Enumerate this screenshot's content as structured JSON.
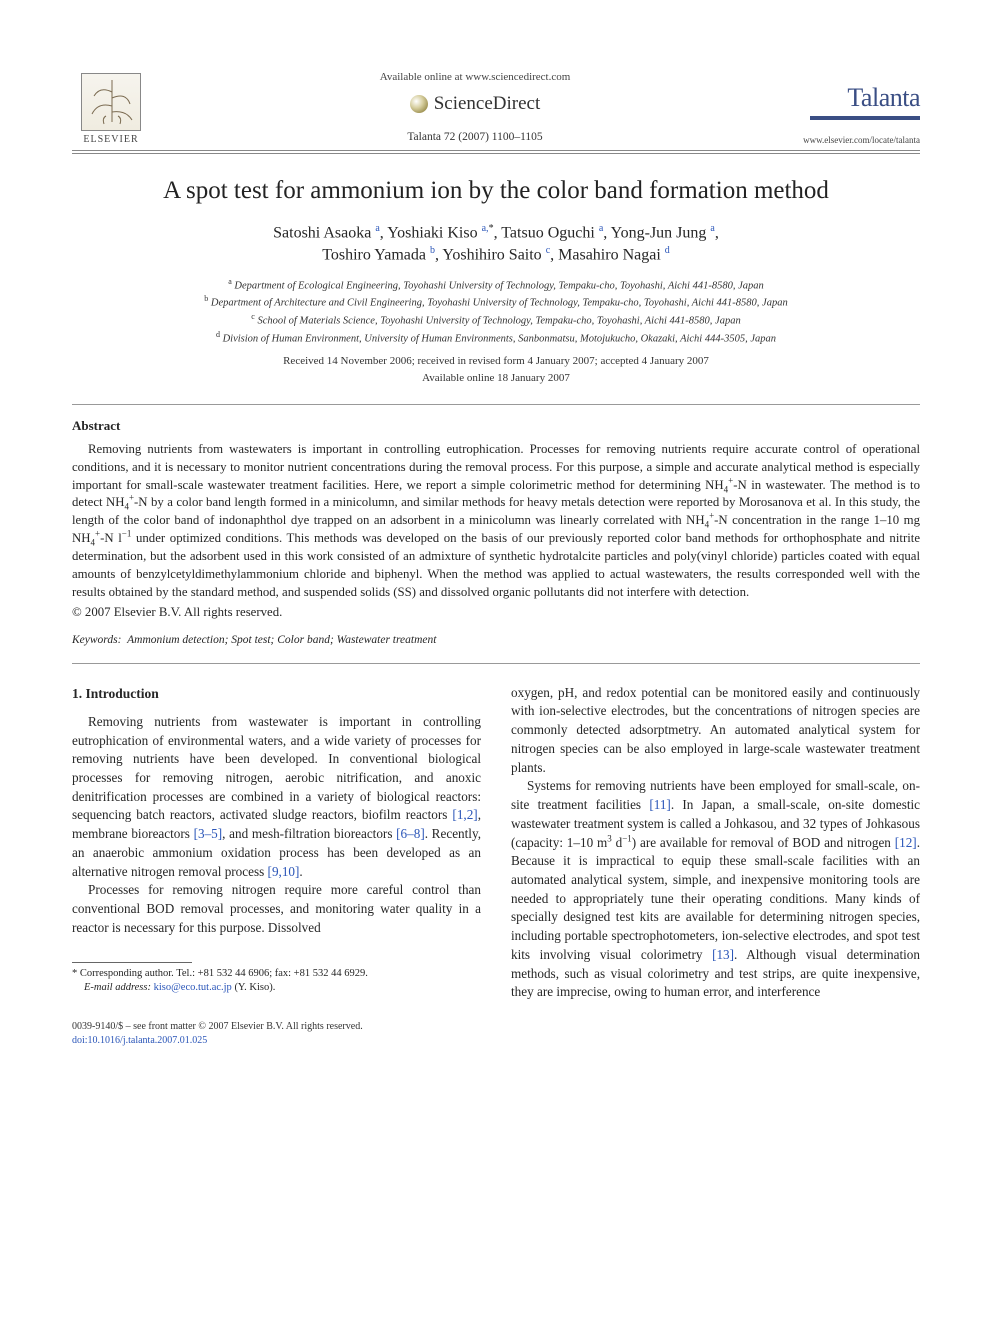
{
  "header": {
    "available_online": "Available online at www.sciencedirect.com",
    "sciencedirect": "ScienceDirect",
    "citation": "Talanta 72 (2007) 1100–1105",
    "elsevier": "ELSEVIER",
    "journal_name": "Talanta",
    "journal_url": "www.elsevier.com/locate/talanta"
  },
  "title": "A spot test for ammonium ion by the color band formation method",
  "authors_html": "Satoshi Asaoka <sup class=\"link\">a</sup>, Yoshiaki Kiso <sup class=\"link\">a,</sup><sup>*</sup>, Tatsuo Oguchi <sup class=\"link\">a</sup>, Yong-Jun Jung <sup class=\"link\">a</sup>,<br>Toshiro Yamada <sup class=\"link\">b</sup>, Yoshihiro Saito <sup class=\"link\">c</sup>, Masahiro Nagai <sup class=\"link\">d</sup>",
  "affiliations": {
    "a": "Department of Ecological Engineering, Toyohashi University of Technology, Tempaku-cho, Toyohashi, Aichi 441-8580, Japan",
    "b": "Department of Architecture and Civil Engineering, Toyohashi University of Technology, Tempaku-cho, Toyohashi, Aichi 441-8580, Japan",
    "c": "School of Materials Science, Toyohashi University of Technology, Tempaku-cho, Toyohashi, Aichi 441-8580, Japan",
    "d": "Division of Human Environment, University of Human Environments, Sanbonmatsu, Motojukucho, Okazaki, Aichi 444-3505, Japan"
  },
  "dates": "Received 14 November 2006; received in revised form 4 January 2007; accepted 4 January 2007",
  "available_date": "Available online 18 January 2007",
  "abstract": {
    "heading": "Abstract",
    "body_html": "Removing nutrients from wastewaters is important in controlling eutrophication. Processes for removing nutrients require accurate control of operational conditions, and it is necessary to monitor nutrient concentrations during the removal process. For this purpose, a simple and accurate analytical method is especially important for small-scale wastewater treatment facilities. Here, we report a simple colorimetric method for determining NH<sub>4</sub><sup>+</sup>-N in wastewater. The method is to detect NH<sub>4</sub><sup>+</sup>-N by a color band length formed in a minicolumn, and similar methods for heavy metals detection were reported by Morosanova et al. In this study, the length of the color band of indonaphthol dye trapped on an adsorbent in a minicolumn was linearly correlated with NH<sub>4</sub><sup>+</sup>-N concentration in the range 1–10 mg NH<sub>4</sub><sup>+</sup>-N l<sup>−1</sup> under optimized conditions. This methods was developed on the basis of our previously reported color band methods for orthophosphate and nitrite determination, but the adsorbent used in this work consisted of an admixture of synthetic hydrotalcite particles and poly(vinyl chloride) particles coated with equal amounts of benzylcetyldimethylammonium chloride and biphenyl. When the method was applied to actual wastewaters, the results corresponded well with the results obtained by the standard method, and suspended solids (SS) and dissolved organic pollutants did not interfere with detection.",
    "copyright": "© 2007 Elsevier B.V. All rights reserved."
  },
  "keywords": {
    "label": "Keywords:",
    "text": "Ammonium detection; Spot test; Color band; Wastewater treatment"
  },
  "intro": {
    "heading": "1.  Introduction",
    "left": {
      "p1_html": "Removing nutrients from wastewater is important in controlling eutrophication of environmental waters, and a wide variety of processes for removing nutrients have been developed. In conventional biological processes for removing nitrogen, aerobic nitrification, and anoxic denitrification processes are combined in a variety of biological reactors: sequencing batch reactors, activated sludge reactors, biofilm reactors <span class=\"link\">[1,2]</span>, membrane bioreactors <span class=\"link\">[3–5]</span>, and mesh-filtration bioreactors <span class=\"link\">[6–8]</span>. Recently, an anaerobic ammonium oxidation process has been developed as an alternative nitrogen removal process <span class=\"link\">[9,10]</span>.",
      "p2": "Processes for removing nitrogen require more careful control than conventional BOD removal processes, and monitoring water quality in a reactor is necessary for this purpose. Dissolved"
    },
    "right": {
      "p1": "oxygen, pH, and redox potential can be monitored easily and continuously with ion-selective electrodes, but the concentrations of nitrogen species are commonly detected adsorptmetry. An automated analytical system for nitrogen species can be also employed in large-scale wastewater treatment plants.",
      "p2_html": "Systems for removing nutrients have been employed for small-scale, on-site treatment facilities <span class=\"link\">[11]</span>. In Japan, a small-scale, on-site domestic wastewater treatment system is called a Johkasou, and 32 types of Johkasous (capacity: 1–10 m<sup>3</sup> d<sup>−1</sup>) are available for removal of BOD and nitrogen <span class=\"link\">[12]</span>. Because it is impractical to equip these small-scale facilities with an automated analytical system, simple, and inexpensive monitoring tools are needed to appropriately tune their operating conditions. Many kinds of specially designed test kits are available for determining nitrogen species, including portable spectrophotometers, ion-selective electrodes, and spot test kits involving visual colorimetry <span class=\"link\">[13]</span>. Although visual determination methods, such as visual colorimetry and test strips, are quite inexpensive, they are imprecise, owing to human error, and interference"
    }
  },
  "footnote": {
    "corr": "* Corresponding author. Tel.: +81 532 44 6906; fax: +81 532 44 6929.",
    "email_label": "E-mail address:",
    "email": "kiso@eco.tut.ac.jp",
    "email_tail": "(Y. Kiso)."
  },
  "bottom": {
    "line1": "0039-9140/$ – see front matter © 2007 Elsevier B.V. All rights reserved.",
    "line2": "doi:10.1016/j.talanta.2007.01.025"
  },
  "colors": {
    "link": "#2a55b8",
    "journal": "#3a4e84",
    "text": "#262626"
  }
}
